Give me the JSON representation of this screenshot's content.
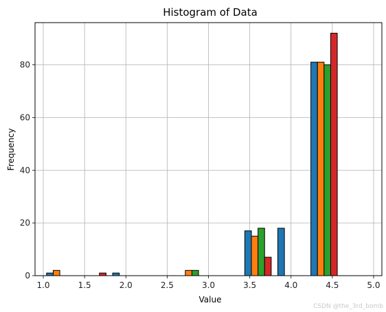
{
  "chart_data": {
    "type": "bar",
    "title": "Histogram of Data",
    "xlabel": "Value",
    "ylabel": "Frequency",
    "xlim": [
      0.9,
      5.1
    ],
    "ylim": [
      0,
      96
    ],
    "x_ticks": [
      1.0,
      1.5,
      2.0,
      2.5,
      3.0,
      3.5,
      4.0,
      4.5,
      5.0
    ],
    "x_tick_labels": [
      "1.0",
      "1.5",
      "2.0",
      "2.5",
      "3.0",
      "3.5",
      "4.0",
      "4.5",
      "5.0"
    ],
    "y_ticks": [
      0,
      20,
      40,
      60,
      80
    ],
    "y_tick_labels": [
      "0",
      "20",
      "40",
      "60",
      "80"
    ],
    "grid": true,
    "legend": false,
    "bin_edges": [
      1.0,
      1.4,
      1.8,
      2.2,
      2.6,
      3.0,
      3.4,
      3.8,
      4.2,
      4.6,
      5.0
    ],
    "series": [
      {
        "color": "#1f77b4",
        "values": [
          1,
          0,
          1,
          0,
          0,
          0,
          17,
          18,
          81,
          0
        ]
      },
      {
        "color": "#ff7f0e",
        "values": [
          2,
          0,
          0,
          0,
          2,
          0,
          15,
          0,
          81,
          0
        ]
      },
      {
        "color": "#2ca02c",
        "values": [
          0,
          0,
          0,
          0,
          2,
          0,
          18,
          0,
          80,
          0
        ]
      },
      {
        "color": "#d62728",
        "values": [
          0,
          1,
          0,
          0,
          0,
          0,
          7,
          0,
          92,
          0
        ]
      }
    ]
  },
  "watermark": "CSDN @the_3rd_bomb"
}
